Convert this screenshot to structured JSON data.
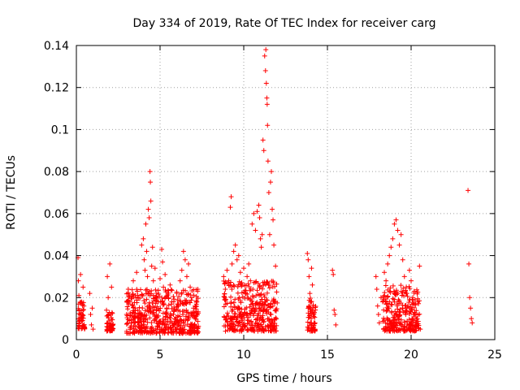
{
  "chart_data": {
    "type": "scatter",
    "title": "Day 334 of 2019, Rate Of TEC Index for receiver carg",
    "xlabel": "GPS time / hours",
    "ylabel": "ROTI / TECUs",
    "xlim": [
      0,
      25
    ],
    "ylim": [
      0,
      0.14
    ],
    "xticks": [
      0,
      5,
      10,
      15,
      20,
      25
    ],
    "xtick_labels": [
      "0",
      "5",
      "10",
      "15",
      "20",
      "25"
    ],
    "yticks": [
      0,
      0.02,
      0.04,
      0.06,
      0.08,
      0.1,
      0.12,
      0.14
    ],
    "ytick_labels": [
      "0",
      "0.02",
      "0.04",
      "0.06",
      "0.08",
      "0.1",
      "0.12",
      "0.14"
    ],
    "grid": true,
    "marker": "+",
    "color": "#ff0000",
    "series": [
      {
        "name": "ROTI",
        "points": [
          [
            0.1,
            0.039
          ],
          [
            0.12,
            0.028
          ],
          [
            0.15,
            0.021
          ],
          [
            0.18,
            0.014
          ],
          [
            0.2,
            0.009
          ],
          [
            0.25,
            0.031
          ],
          [
            0.3,
            0.018
          ],
          [
            0.35,
            0.012
          ],
          [
            0.4,
            0.025
          ],
          [
            0.45,
            0.016
          ],
          [
            0.8,
            0.022
          ],
          [
            0.85,
            0.012
          ],
          [
            0.9,
            0.007
          ],
          [
            0.95,
            0.015
          ],
          [
            1.0,
            0.005
          ],
          [
            1.8,
            0.014
          ],
          [
            1.85,
            0.03
          ],
          [
            1.9,
            0.02
          ],
          [
            1.95,
            0.008
          ],
          [
            2.0,
            0.036
          ],
          [
            2.05,
            0.012
          ],
          [
            2.1,
            0.025
          ],
          [
            2.15,
            0.005
          ],
          [
            3.0,
            0.012
          ],
          [
            3.1,
            0.024
          ],
          [
            3.2,
            0.018
          ],
          [
            3.3,
            0.008
          ],
          [
            3.4,
            0.028
          ],
          [
            3.5,
            0.015
          ],
          [
            3.6,
            0.032
          ],
          [
            3.7,
            0.02
          ],
          [
            3.8,
            0.01
          ],
          [
            3.9,
            0.045
          ],
          [
            4.0,
            0.048
          ],
          [
            4.05,
            0.038
          ],
          [
            4.1,
            0.033
          ],
          [
            4.15,
            0.055
          ],
          [
            4.2,
            0.042
          ],
          [
            4.25,
            0.03
          ],
          [
            4.3,
            0.062
          ],
          [
            4.35,
            0.058
          ],
          [
            4.4,
            0.08
          ],
          [
            4.42,
            0.075
          ],
          [
            4.45,
            0.066
          ],
          [
            4.5,
            0.035
          ],
          [
            4.55,
            0.044
          ],
          [
            4.6,
            0.028
          ],
          [
            4.7,
            0.034
          ],
          [
            4.8,
            0.022
          ],
          [
            4.9,
            0.018
          ],
          [
            5.0,
            0.029
          ],
          [
            5.1,
            0.043
          ],
          [
            5.15,
            0.037
          ],
          [
            5.2,
            0.025
          ],
          [
            5.3,
            0.031
          ],
          [
            5.4,
            0.015
          ],
          [
            5.5,
            0.02
          ],
          [
            5.6,
            0.026
          ],
          [
            5.7,
            0.018
          ],
          [
            5.8,
            0.012
          ],
          [
            5.9,
            0.008
          ],
          [
            6.0,
            0.022
          ],
          [
            6.1,
            0.016
          ],
          [
            6.2,
            0.028
          ],
          [
            6.3,
            0.033
          ],
          [
            6.4,
            0.042
          ],
          [
            6.5,
            0.038
          ],
          [
            6.6,
            0.03
          ],
          [
            6.7,
            0.036
          ],
          [
            6.8,
            0.025
          ],
          [
            6.9,
            0.02
          ],
          [
            7.0,
            0.015
          ],
          [
            7.1,
            0.01
          ],
          [
            7.2,
            0.018
          ],
          [
            8.8,
            0.03
          ],
          [
            8.9,
            0.024
          ],
          [
            9.0,
            0.033
          ],
          [
            9.1,
            0.028
          ],
          [
            9.2,
            0.063
          ],
          [
            9.25,
            0.068
          ],
          [
            9.3,
            0.036
          ],
          [
            9.4,
            0.042
          ],
          [
            9.5,
            0.045
          ],
          [
            9.6,
            0.038
          ],
          [
            9.7,
            0.04
          ],
          [
            9.8,
            0.032
          ],
          [
            9.9,
            0.026
          ],
          [
            10.0,
            0.034
          ],
          [
            10.1,
            0.022
          ],
          [
            10.2,
            0.03
          ],
          [
            10.3,
            0.036
          ],
          [
            10.4,
            0.028
          ],
          [
            10.5,
            0.055
          ],
          [
            10.6,
            0.06
          ],
          [
            10.7,
            0.052
          ],
          [
            10.8,
            0.061
          ],
          [
            10.9,
            0.064
          ],
          [
            10.95,
            0.058
          ],
          [
            11.0,
            0.048
          ],
          [
            11.05,
            0.044
          ],
          [
            11.1,
            0.05
          ],
          [
            11.15,
            0.095
          ],
          [
            11.2,
            0.09
          ],
          [
            11.25,
            0.135
          ],
          [
            11.3,
            0.128
          ],
          [
            11.32,
            0.138
          ],
          [
            11.35,
            0.122
          ],
          [
            11.38,
            0.115
          ],
          [
            11.4,
            0.112
          ],
          [
            11.42,
            0.102
          ],
          [
            11.45,
            0.085
          ],
          [
            11.5,
            0.07
          ],
          [
            11.55,
            0.05
          ],
          [
            11.6,
            0.075
          ],
          [
            11.65,
            0.08
          ],
          [
            11.7,
            0.062
          ],
          [
            11.75,
            0.057
          ],
          [
            11.8,
            0.045
          ],
          [
            11.9,
            0.035
          ],
          [
            13.8,
            0.041
          ],
          [
            13.85,
            0.038
          ],
          [
            13.9,
            0.03
          ],
          [
            13.95,
            0.022
          ],
          [
            14.0,
            0.018
          ],
          [
            14.05,
            0.034
          ],
          [
            14.1,
            0.026
          ],
          [
            14.15,
            0.012
          ],
          [
            14.2,
            0.008
          ],
          [
            14.25,
            0.005
          ],
          [
            15.3,
            0.033
          ],
          [
            15.35,
            0.031
          ],
          [
            15.4,
            0.014
          ],
          [
            15.45,
            0.012
          ],
          [
            15.5,
            0.007
          ],
          [
            17.9,
            0.03
          ],
          [
            17.95,
            0.024
          ],
          [
            18.0,
            0.016
          ],
          [
            18.05,
            0.012
          ],
          [
            18.1,
            0.008
          ],
          [
            18.2,
            0.02
          ],
          [
            18.3,
            0.018
          ],
          [
            18.4,
            0.032
          ],
          [
            18.5,
            0.028
          ],
          [
            18.6,
            0.036
          ],
          [
            18.7,
            0.04
          ],
          [
            18.8,
            0.044
          ],
          [
            18.9,
            0.048
          ],
          [
            19.0,
            0.055
          ],
          [
            19.1,
            0.057
          ],
          [
            19.2,
            0.052
          ],
          [
            19.3,
            0.045
          ],
          [
            19.4,
            0.05
          ],
          [
            19.5,
            0.038
          ],
          [
            19.6,
            0.03
          ],
          [
            19.7,
            0.022
          ],
          [
            19.8,
            0.016
          ],
          [
            19.9,
            0.033
          ],
          [
            20.0,
            0.028
          ],
          [
            20.1,
            0.02
          ],
          [
            20.2,
            0.012
          ],
          [
            20.3,
            0.008
          ],
          [
            20.4,
            0.018
          ],
          [
            20.5,
            0.035
          ],
          [
            20.55,
            0.005
          ],
          [
            23.4,
            0.071
          ],
          [
            23.45,
            0.036
          ],
          [
            23.5,
            0.02
          ],
          [
            23.55,
            0.015
          ],
          [
            23.6,
            0.01
          ],
          [
            23.65,
            0.008
          ]
        ],
        "dense_bands": [
          {
            "x": [
              3.0,
              7.3
            ],
            "y": [
              0.003,
              0.024
            ]
          },
          {
            "x": [
              8.8,
              12.0
            ],
            "y": [
              0.004,
              0.028
            ]
          },
          {
            "x": [
              18.3,
              20.5
            ],
            "y": [
              0.004,
              0.026
            ]
          },
          {
            "x": [
              0.1,
              0.5
            ],
            "y": [
              0.005,
              0.018
            ]
          },
          {
            "x": [
              1.8,
              2.2
            ],
            "y": [
              0.004,
              0.014
            ]
          },
          {
            "x": [
              13.8,
              14.3
            ],
            "y": [
              0.004,
              0.02
            ]
          }
        ]
      }
    ]
  }
}
